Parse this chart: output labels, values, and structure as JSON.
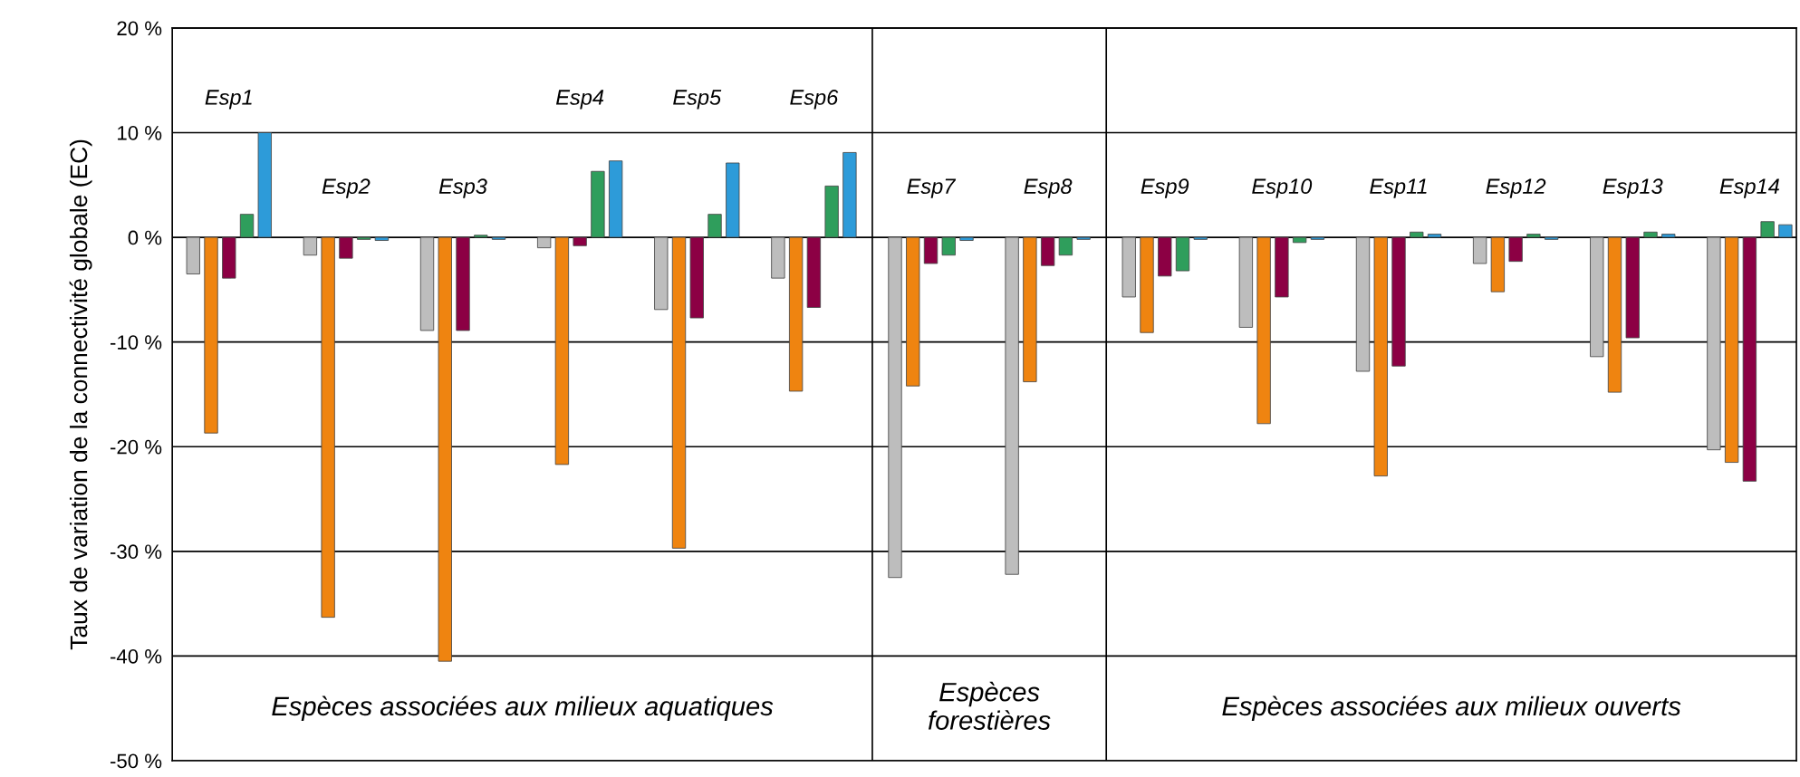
{
  "chart_data": {
    "type": "bar",
    "ylabel": "Taux de variation de la connectivité globale (EC)",
    "categories": [
      "Esp1",
      "Esp2",
      "Esp3",
      "Esp4",
      "Esp5",
      "Esp6",
      "Esp7",
      "Esp8",
      "Esp9",
      "Esp10",
      "Esp11",
      "Esp12",
      "Esp13",
      "Esp14"
    ],
    "series": [
      {
        "color": "#bdbdbd",
        "values": [
          -3.5,
          -1.7,
          -8.9,
          -1.0,
          -6.9,
          -3.9,
          -32.5,
          -32.2,
          -5.7,
          -8.6,
          -12.8,
          -2.5,
          -11.4,
          -20.3
        ]
      },
      {
        "color": "#ef8410",
        "values": [
          -18.7,
          -36.3,
          -40.5,
          -21.7,
          -29.7,
          -14.7,
          -14.2,
          -13.8,
          -9.1,
          -17.8,
          -22.8,
          -5.2,
          -14.8,
          -21.5
        ]
      },
      {
        "color": "#8c0044",
        "values": [
          -3.9,
          -2.0,
          -8.9,
          -0.8,
          -7.7,
          -6.7,
          -2.5,
          -2.7,
          -3.7,
          -5.7,
          -12.3,
          -2.3,
          -9.6,
          -23.3
        ]
      },
      {
        "color": "#2f9e5c",
        "values": [
          2.2,
          -0.2,
          0.2,
          6.3,
          2.2,
          4.9,
          -1.7,
          -1.7,
          -3.2,
          -0.5,
          0.5,
          0.3,
          0.5,
          1.5
        ]
      },
      {
        "color": "#2d9bd9",
        "values": [
          10.0,
          -0.3,
          -0.2,
          7.3,
          7.1,
          8.1,
          -0.3,
          -0.2,
          -0.2,
          -0.2,
          0.3,
          -0.2,
          0.3,
          1.2
        ]
      }
    ],
    "ylim": [
      -50,
      20
    ],
    "yticks": [
      {
        "value": -50,
        "label": "-50 %"
      },
      {
        "value": -40,
        "label": "-40 %"
      },
      {
        "value": -30,
        "label": "-30 %"
      },
      {
        "value": -20,
        "label": "-20 %"
      },
      {
        "value": -10,
        "label": "-10 %"
      },
      {
        "value": 0,
        "label": "0 %"
      },
      {
        "value": 10,
        "label": "10 %"
      },
      {
        "value": 20,
        "label": "20 %"
      }
    ],
    "grid": "y",
    "annotations": [
      "Espèces associées aux milieux aquatiques",
      "Espèces\nforestières",
      "Espèces associées aux milieux ouverts"
    ]
  }
}
